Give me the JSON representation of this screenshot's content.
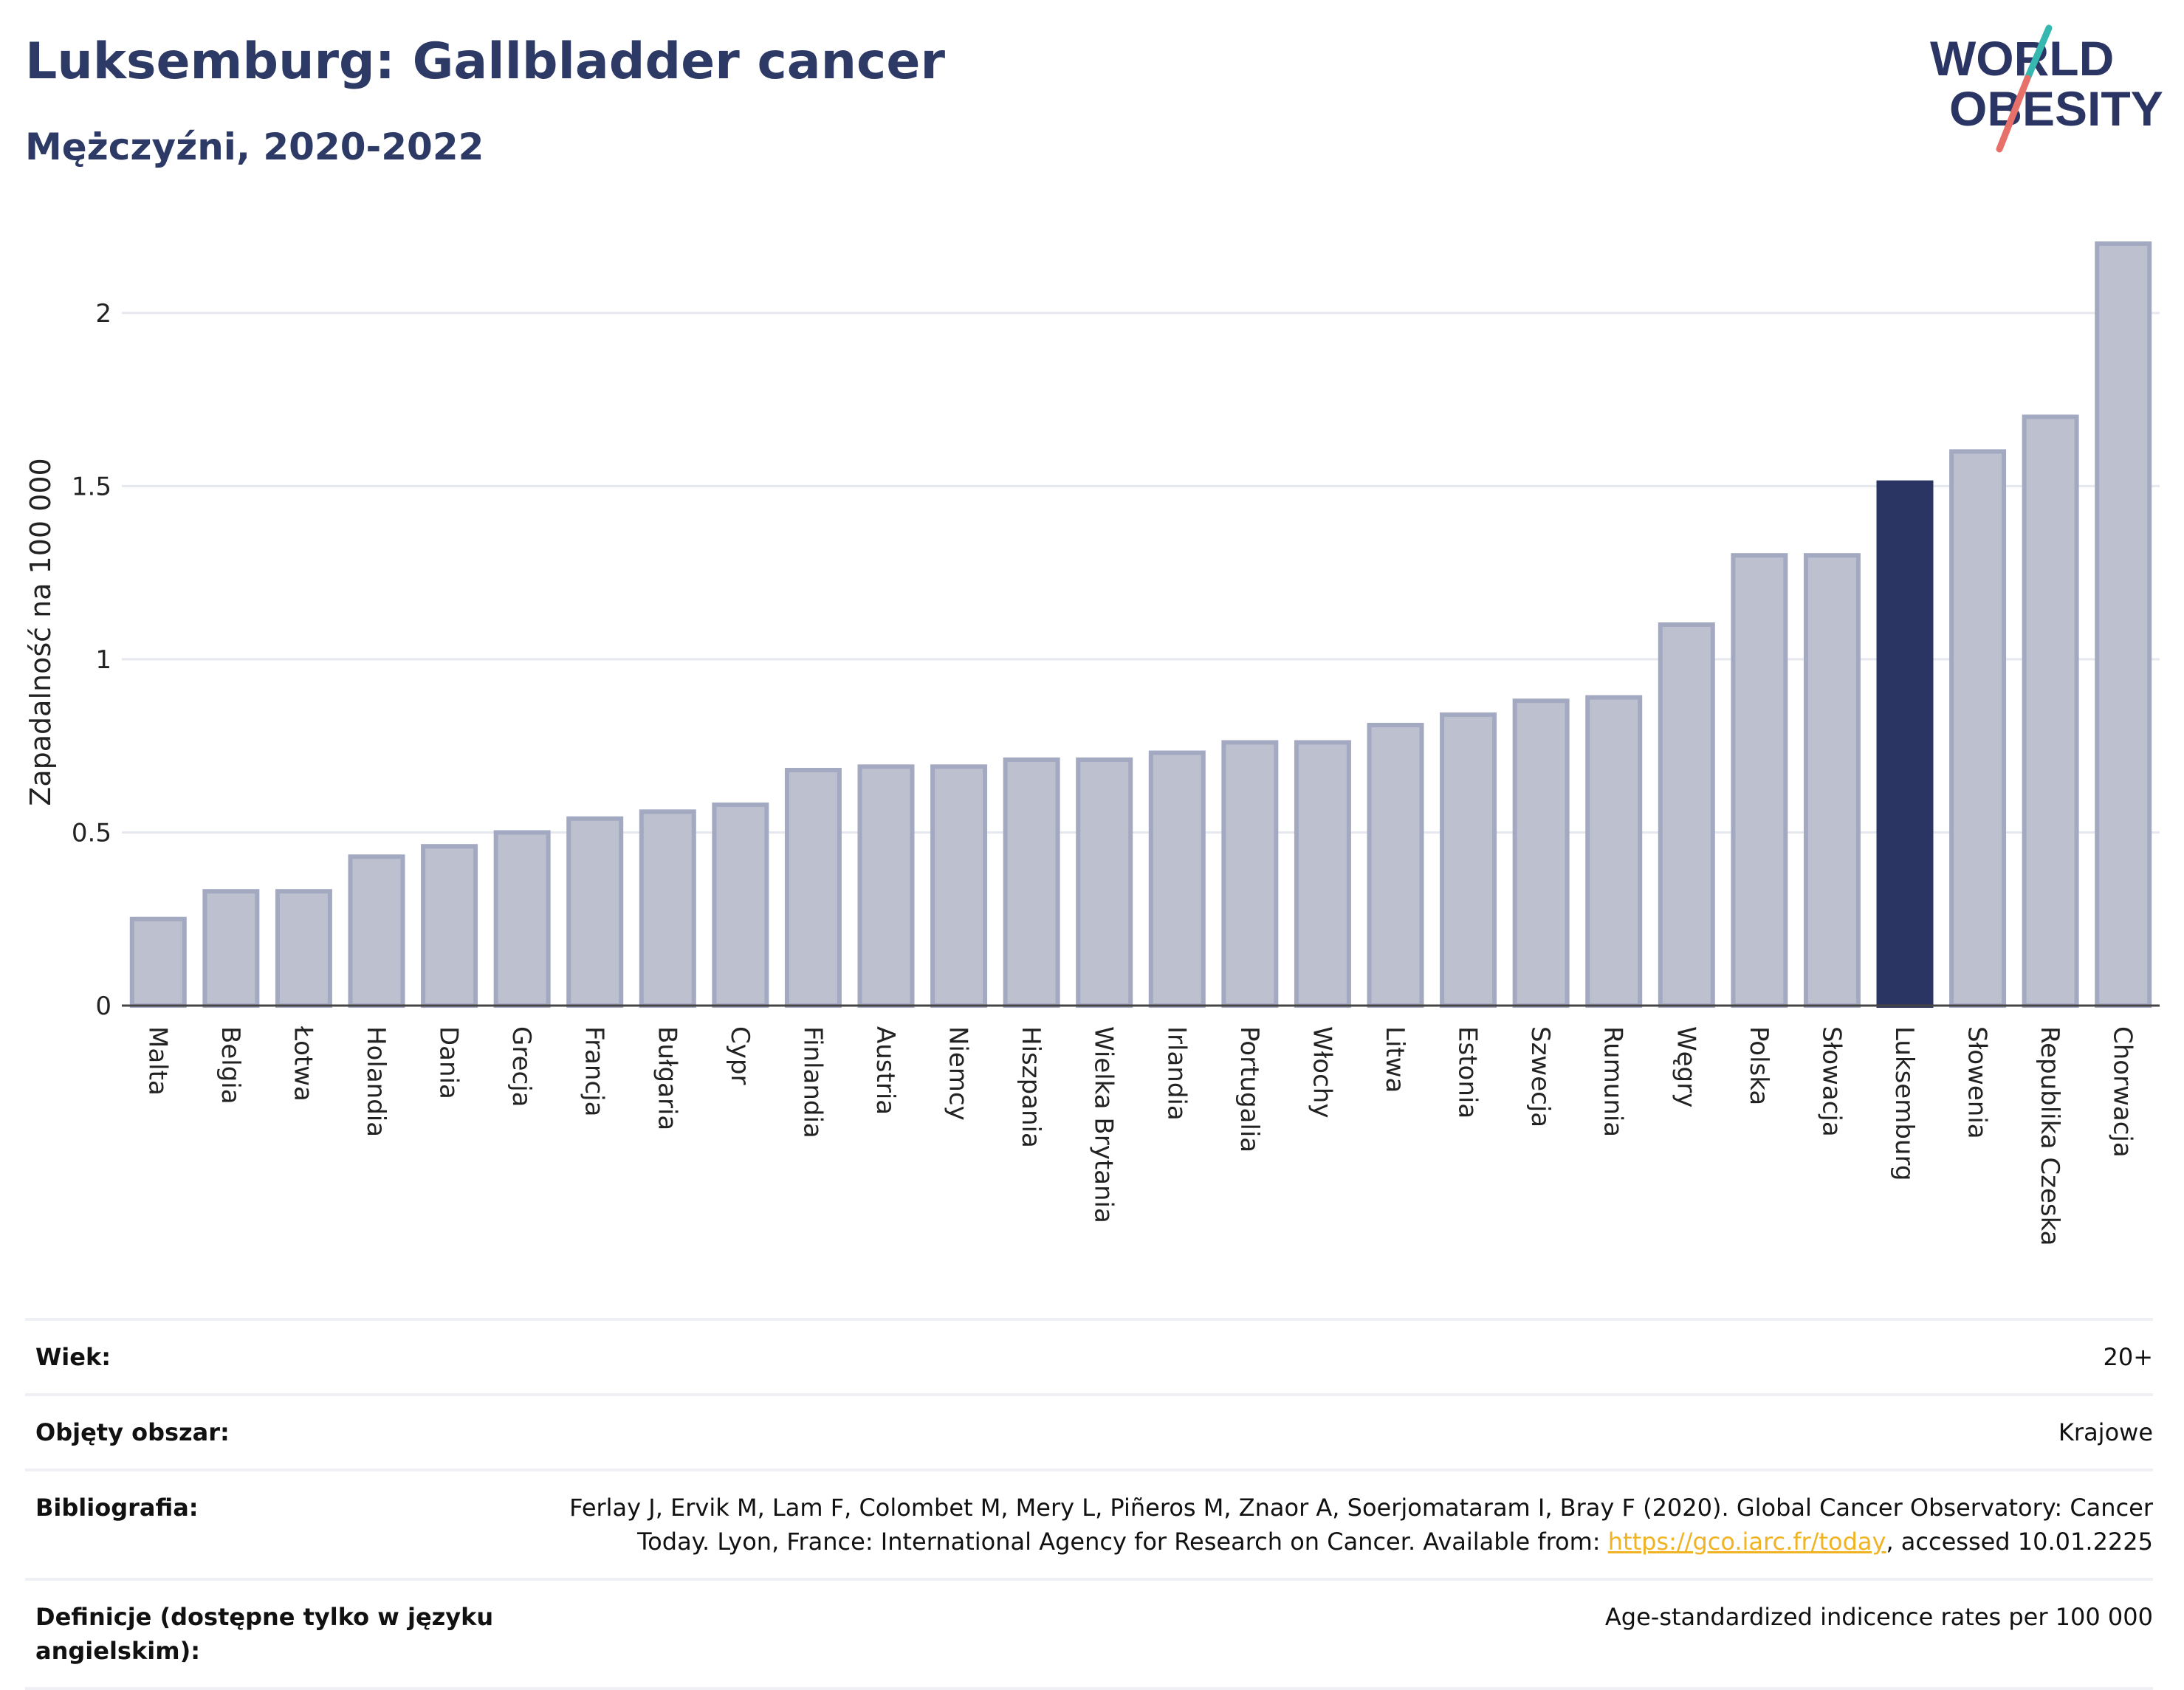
{
  "title": "Luksemburg: Gallbladder cancer",
  "subtitle": "Mężczyźni, 2020-2022",
  "logo": {
    "line1": "WORLD",
    "line2": "OBESITY"
  },
  "colors": {
    "bar": "#bcc0cf",
    "bar_border": "#a3a9c0",
    "highlight": "#2b3563",
    "text": "#2d3a66",
    "link": "#f0b323"
  },
  "chart_data": {
    "type": "bar",
    "ylabel": "Zapadalność na 100 000",
    "xlabel": "",
    "ylim": [
      0,
      2.2
    ],
    "yticks": [
      0,
      0.5,
      1,
      1.5,
      2
    ],
    "ytick_labels": [
      "0",
      "0.5",
      "1",
      "1.5",
      "2"
    ],
    "grid": true,
    "highlight": "Luksemburg",
    "categories": [
      "Malta",
      "Belgia",
      "Łotwa",
      "Holandia",
      "Dania",
      "Grecja",
      "Francja",
      "Bułgaria",
      "Cypr",
      "Finlandia",
      "Austria",
      "Niemcy",
      "Hiszpania",
      "Wielka Brytania",
      "Irlandia",
      "Portugalia",
      "Włochy",
      "Litwa",
      "Estonia",
      "Szwecja",
      "Rumunia",
      "Węgry",
      "Polska",
      "Słowacja",
      "Luksemburg",
      "Słowenia",
      "Republika Czeska",
      "Chorwacja"
    ],
    "values": [
      0.25,
      0.33,
      0.33,
      0.43,
      0.46,
      0.5,
      0.54,
      0.56,
      0.58,
      0.68,
      0.69,
      0.69,
      0.71,
      0.71,
      0.73,
      0.76,
      0.76,
      0.81,
      0.84,
      0.88,
      0.89,
      1.1,
      1.3,
      1.3,
      1.51,
      1.6,
      1.7,
      2.2
    ]
  },
  "info": {
    "age_label": "Wiek:",
    "age_value": "20+",
    "area_label": "Objęty obszar:",
    "area_value": "Krajowe",
    "bib_label": "Bibliografia:",
    "bib_text_1": "Ferlay J, Ervik M, Lam F, Colombet M, Mery L, Piñeros M, Znaor A, Soerjomataram I, Bray F (2020). Global Cancer Observatory: Cancer",
    "bib_text_2": "Today. Lyon, France: International Agency for Research on Cancer. Available from:",
    "bib_link": "https://gco.iarc.fr/today",
    "bib_text_3": ", accessed 10.01.2225",
    "def_label": "Definicje (dostępne tylko w języku angielskim):",
    "def_value": "Age-standardized indicence rates per 100 000"
  }
}
